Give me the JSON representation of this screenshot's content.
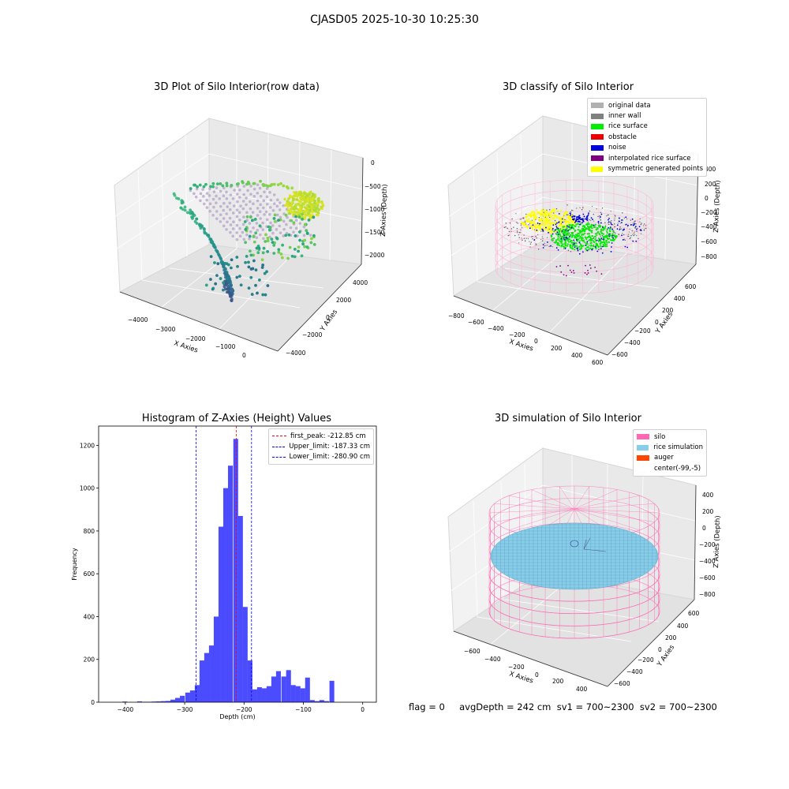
{
  "figure": {
    "title": "CJASD05 2025-10-30 10:25:30",
    "footer": "flag = 0     avgDepth = 242 cm  sv1 = 700~2300  sv2 = 700~2300"
  },
  "panel1": {
    "title": "3D Plot of Silo Interior(row data)",
    "xlabel": "X Axies",
    "ylabel": "Y Axies",
    "zlabel": "Z Axies (Depth)",
    "xticks": [
      "−4000",
      "−3000",
      "−2000",
      "−1000",
      "0"
    ],
    "yticks": [
      "4000",
      "2000",
      "0",
      "−2000",
      "−4000"
    ],
    "zticks": [
      "0",
      "−500",
      "−1000",
      "−1500",
      "−2000"
    ]
  },
  "panel2": {
    "title": "3D classify of Silo Interior",
    "xlabel": "X Axies",
    "ylabel": "Y Axies",
    "zlabel": "Z Axies (Depth)",
    "xticks": [
      "−800",
      "−600",
      "−400",
      "−200",
      "0",
      "200",
      "400",
      "600"
    ],
    "yticks": [
      "600",
      "400",
      "200",
      "0",
      "−200",
      "−400",
      "−600"
    ],
    "zticks": [
      "400",
      "200",
      "0",
      "−200",
      "−400",
      "−600",
      "−800"
    ],
    "legend": [
      {
        "label": "original data",
        "color": "#b0b0b0"
      },
      {
        "label": "inner wall",
        "color": "#808080"
      },
      {
        "label": "rice surface",
        "color": "#00ee00"
      },
      {
        "label": "obstacle",
        "color": "#ee0000"
      },
      {
        "label": "noise",
        "color": "#0000dd"
      },
      {
        "label": "interpolated rice surface",
        "color": "#800080"
      },
      {
        "label": "symmetric generated points",
        "color": "#ffff00"
      }
    ]
  },
  "panel4": {
    "title": "3D simulation of Silo Interior",
    "xlabel": "X Axies",
    "ylabel": "Y Axies",
    "zlabel": "Z Axies (Depth)",
    "xticks": [
      "−600",
      "−400",
      "−200",
      "0",
      "200",
      "400"
    ],
    "yticks": [
      "600",
      "400",
      "200",
      "0",
      "−200",
      "−400",
      "−600"
    ],
    "zticks": [
      "400",
      "200",
      "0",
      "−200",
      "−400",
      "−600",
      "−800"
    ],
    "legend": [
      {
        "label": "silo",
        "color": "#ff69b4"
      },
      {
        "label": "rice simulation",
        "color": "#87ceeb"
      },
      {
        "label": "auger",
        "color": "#ff4500"
      },
      {
        "label": "center(-99,-5)",
        "color": "transparent"
      }
    ]
  },
  "chart_data": {
    "type": "bar",
    "title": "Histogram of Z-Axies (Height) Values",
    "xlabel": "Depth (cm)",
    "ylabel": "Frequency",
    "xlim": [
      -445,
      23
    ],
    "ylim": [
      0,
      1290
    ],
    "xticks": [
      -400,
      -300,
      -200,
      -100,
      0
    ],
    "yticks": [
      0,
      200,
      400,
      600,
      800,
      1000,
      1200
    ],
    "bar_color": "#0000ff",
    "bin_width": 8.1,
    "bin_starts": [
      -405,
      -397,
      -389,
      -380,
      -372,
      -364,
      -356,
      -348,
      -340,
      -332,
      -324,
      -316,
      -308,
      -299,
      -291,
      -283,
      -275,
      -267,
      -259,
      -251,
      -243,
      -235,
      -227,
      -218,
      -210,
      -202,
      -194,
      -186,
      -178,
      -170,
      -162,
      -154,
      -146,
      -137,
      -129,
      -121,
      -113,
      -105,
      -97,
      -89,
      -81,
      -73,
      -65,
      -56,
      -48,
      -40,
      -32,
      -24,
      -16,
      -8
    ],
    "values": [
      3,
      0,
      0,
      4,
      2,
      2,
      3,
      4,
      5,
      6,
      12,
      20,
      30,
      45,
      55,
      80,
      195,
      230,
      265,
      400,
      820,
      1000,
      1105,
      1230,
      870,
      445,
      195,
      60,
      70,
      65,
      75,
      120,
      145,
      120,
      150,
      80,
      75,
      65,
      115,
      10,
      5,
      10,
      5,
      100,
      0,
      0,
      0,
      0,
      0,
      0
    ],
    "lines": [
      {
        "label": "first_peak: -212.85 cm",
        "x": -212.85,
        "color": "#ff0000"
      },
      {
        "label": "Upper_limit: -187.33 cm",
        "x": -187.33,
        "color": "#0000ff"
      },
      {
        "label": "Lower_limit: -280.90 cm",
        "x": -280.9,
        "color": "#0000ff"
      }
    ],
    "legend_position": "upper right"
  }
}
